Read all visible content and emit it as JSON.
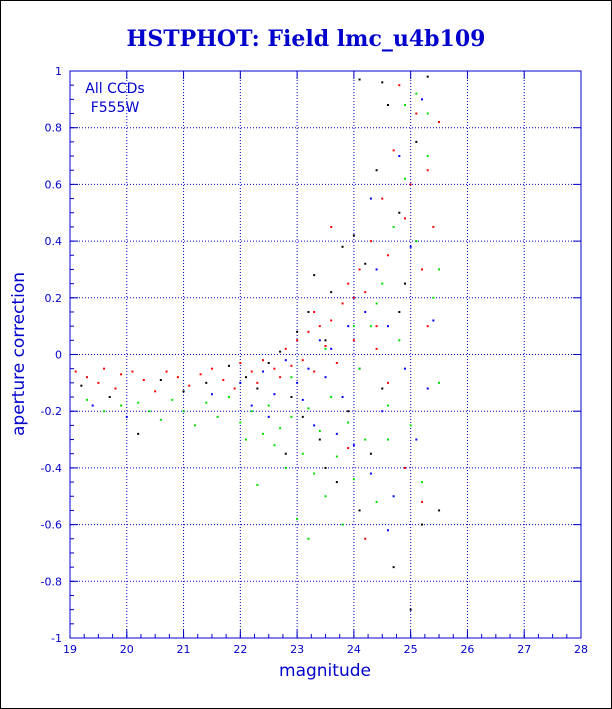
{
  "chart_data": {
    "type": "scatter",
    "title": "HSTPHOT: Field lmc_u4b109",
    "xlabel": "magnitude",
    "ylabel": "aperture correction",
    "xlim": [
      19,
      28
    ],
    "ylim": [
      -1,
      1
    ],
    "xticks": [
      19,
      20,
      21,
      22,
      23,
      24,
      25,
      26,
      27,
      28
    ],
    "yticks": [
      1,
      0.8,
      0.6,
      0.4,
      0.2,
      0,
      -0.2,
      -0.4,
      -0.6,
      -0.8,
      -1
    ],
    "grid": true,
    "annotations": [
      "All CCDs",
      "F555W"
    ],
    "colors": {
      "axis": "#0000cc",
      "grid": "#0000cc",
      "title": "#0000cc"
    },
    "series": [
      {
        "color": "#ff0000",
        "points": [
          [
            19.1,
            -0.06
          ],
          [
            19.3,
            -0.08
          ],
          [
            19.5,
            -0.1
          ],
          [
            19.6,
            -0.05
          ],
          [
            19.8,
            -0.12
          ],
          [
            19.9,
            -0.07
          ],
          [
            20.1,
            -0.06
          ],
          [
            20.3,
            -0.09
          ],
          [
            20.5,
            -0.13
          ],
          [
            20.7,
            -0.06
          ],
          [
            20.9,
            -0.08
          ],
          [
            21.1,
            -0.11
          ],
          [
            21.3,
            -0.07
          ],
          [
            21.5,
            -0.05
          ],
          [
            21.7,
            -0.09
          ],
          [
            21.9,
            -0.12
          ],
          [
            22.0,
            -0.03
          ],
          [
            22.2,
            -0.06
          ],
          [
            22.3,
            -0.1
          ],
          [
            22.4,
            -0.02
          ],
          [
            22.6,
            -0.05
          ],
          [
            22.7,
            -0.08
          ],
          [
            22.8,
            0.02
          ],
          [
            22.9,
            -0.04
          ],
          [
            23.0,
            0.05
          ],
          [
            23.1,
            -0.02
          ],
          [
            23.2,
            0.08
          ],
          [
            23.3,
            -0.06
          ],
          [
            23.4,
            0.1
          ],
          [
            23.5,
            0.03
          ],
          [
            23.6,
            0.12
          ],
          [
            23.7,
            -0.03
          ],
          [
            23.8,
            0.18
          ],
          [
            23.9,
            0.25
          ],
          [
            24.0,
            0.05
          ],
          [
            24.1,
            0.3
          ],
          [
            24.2,
            0.22
          ],
          [
            24.3,
            0.4
          ],
          [
            24.4,
            0.1
          ],
          [
            24.5,
            0.55
          ],
          [
            24.6,
            0.35
          ],
          [
            24.7,
            0.72
          ],
          [
            24.8,
            0.95
          ],
          [
            24.9,
            0.48
          ],
          [
            25.0,
            0.6
          ],
          [
            25.1,
            0.85
          ],
          [
            25.2,
            0.3
          ],
          [
            25.3,
            0.65
          ],
          [
            25.5,
            0.82
          ],
          [
            25.4,
            0.45
          ],
          [
            23.6,
            0.45
          ],
          [
            24.0,
            0.2
          ],
          [
            24.6,
            -0.1
          ],
          [
            25.2,
            -0.52
          ],
          [
            24.2,
            -0.65
          ],
          [
            23.9,
            -0.33
          ],
          [
            24.9,
            -0.4
          ],
          [
            25.3,
            0.1
          ],
          [
            24.4,
            0.02
          ],
          [
            23.3,
            0.15
          ]
        ]
      },
      {
        "color": "#000000",
        "points": [
          [
            19.2,
            -0.11
          ],
          [
            19.7,
            -0.15
          ],
          [
            20.2,
            -0.28
          ],
          [
            20.6,
            -0.09
          ],
          [
            21.0,
            -0.13
          ],
          [
            21.4,
            -0.1
          ],
          [
            21.8,
            -0.04
          ],
          [
            22.1,
            -0.08
          ],
          [
            22.3,
            -0.12
          ],
          [
            22.5,
            -0.03
          ],
          [
            22.7,
            0.01
          ],
          [
            22.9,
            -0.15
          ],
          [
            23.0,
            0.08
          ],
          [
            23.1,
            -0.22
          ],
          [
            23.2,
            0.15
          ],
          [
            23.4,
            -0.3
          ],
          [
            23.5,
            0.05
          ],
          [
            23.6,
            0.22
          ],
          [
            23.7,
            -0.45
          ],
          [
            23.8,
            0.38
          ],
          [
            23.9,
            -0.2
          ],
          [
            24.0,
            0.42
          ],
          [
            24.1,
            -0.55
          ],
          [
            24.2,
            0.32
          ],
          [
            24.3,
            -0.35
          ],
          [
            24.4,
            0.65
          ],
          [
            24.5,
            -0.12
          ],
          [
            24.6,
            0.88
          ],
          [
            24.7,
            -0.75
          ],
          [
            24.8,
            0.5
          ],
          [
            24.9,
            0.25
          ],
          [
            25.0,
            -0.9
          ],
          [
            25.1,
            0.75
          ],
          [
            25.2,
            -0.6
          ],
          [
            25.3,
            0.98
          ],
          [
            24.1,
            0.97
          ],
          [
            24.5,
            0.96
          ],
          [
            23.5,
            -0.4
          ],
          [
            22.8,
            -0.35
          ],
          [
            24.8,
            0.15
          ],
          [
            25.5,
            -0.55
          ],
          [
            23.3,
            0.28
          ]
        ]
      },
      {
        "color": "#0000ff",
        "points": [
          [
            19.4,
            -0.18
          ],
          [
            20.0,
            -0.22
          ],
          [
            21.5,
            -0.14
          ],
          [
            22.0,
            -0.1
          ],
          [
            22.2,
            -0.18
          ],
          [
            22.4,
            -0.06
          ],
          [
            22.6,
            -0.14
          ],
          [
            22.8,
            -0.02
          ],
          [
            23.0,
            -0.1
          ],
          [
            23.2,
            -0.05
          ],
          [
            23.3,
            -0.25
          ],
          [
            23.5,
            -0.08
          ],
          [
            23.6,
            0.02
          ],
          [
            23.8,
            -0.15
          ],
          [
            23.9,
            0.1
          ],
          [
            24.0,
            -0.32
          ],
          [
            24.1,
            -0.05
          ],
          [
            24.2,
            0.15
          ],
          [
            24.3,
            -0.42
          ],
          [
            24.4,
            0.3
          ],
          [
            24.5,
            -0.2
          ],
          [
            24.6,
            0.1
          ],
          [
            24.7,
            -0.5
          ],
          [
            24.8,
            0.7
          ],
          [
            24.9,
            -0.05
          ],
          [
            25.0,
            0.38
          ],
          [
            25.1,
            -0.3
          ],
          [
            25.2,
            0.9
          ],
          [
            25.3,
            -0.12
          ],
          [
            23.4,
            0.05
          ],
          [
            22.5,
            -0.22
          ],
          [
            23.7,
            -0.28
          ],
          [
            24.3,
            0.55
          ],
          [
            25.4,
            0.12
          ],
          [
            24.6,
            -0.62
          ],
          [
            23.1,
            -0.16
          ]
        ]
      },
      {
        "color": "#00e000",
        "points": [
          [
            19.3,
            -0.16
          ],
          [
            19.6,
            -0.2
          ],
          [
            19.9,
            -0.18
          ],
          [
            20.2,
            -0.17
          ],
          [
            20.4,
            -0.2
          ],
          [
            20.6,
            -0.23
          ],
          [
            20.8,
            -0.16
          ],
          [
            21.0,
            -0.2
          ],
          [
            21.2,
            -0.25
          ],
          [
            21.4,
            -0.17
          ],
          [
            21.6,
            -0.22
          ],
          [
            21.8,
            -0.15
          ],
          [
            22.0,
            -0.24
          ],
          [
            22.1,
            -0.3
          ],
          [
            22.2,
            -0.2
          ],
          [
            22.3,
            -0.46
          ],
          [
            22.4,
            -0.28
          ],
          [
            22.5,
            -0.18
          ],
          [
            22.6,
            -0.32
          ],
          [
            22.7,
            -0.26
          ],
          [
            22.8,
            -0.4
          ],
          [
            22.9,
            -0.22
          ],
          [
            23.0,
            -0.58
          ],
          [
            23.1,
            -0.35
          ],
          [
            23.2,
            -0.19
          ],
          [
            23.3,
            -0.42
          ],
          [
            23.4,
            -0.27
          ],
          [
            23.5,
            -0.5
          ],
          [
            23.6,
            -0.15
          ],
          [
            23.7,
            -0.36
          ],
          [
            23.8,
            -0.6
          ],
          [
            23.9,
            -0.24
          ],
          [
            24.0,
            -0.44
          ],
          [
            24.1,
            -0.05
          ],
          [
            24.2,
            -0.3
          ],
          [
            24.3,
            0.1
          ],
          [
            24.4,
            -0.52
          ],
          [
            24.5,
            0.25
          ],
          [
            24.6,
            -0.18
          ],
          [
            24.7,
            0.45
          ],
          [
            24.8,
            0.05
          ],
          [
            24.9,
            0.62
          ],
          [
            25.0,
            -0.25
          ],
          [
            25.1,
            0.4
          ],
          [
            25.2,
            -0.45
          ],
          [
            25.3,
            0.7
          ],
          [
            25.4,
            0.2
          ],
          [
            25.5,
            -0.1
          ],
          [
            25.1,
            0.92
          ],
          [
            24.9,
            0.88
          ],
          [
            25.3,
            0.85
          ],
          [
            24.0,
            0.1
          ],
          [
            23.5,
            0.02
          ],
          [
            22.9,
            -0.08
          ],
          [
            24.6,
            -0.3
          ],
          [
            25.5,
            0.3
          ],
          [
            23.2,
            -0.65
          ],
          [
            24.4,
            0.18
          ]
        ]
      }
    ]
  }
}
